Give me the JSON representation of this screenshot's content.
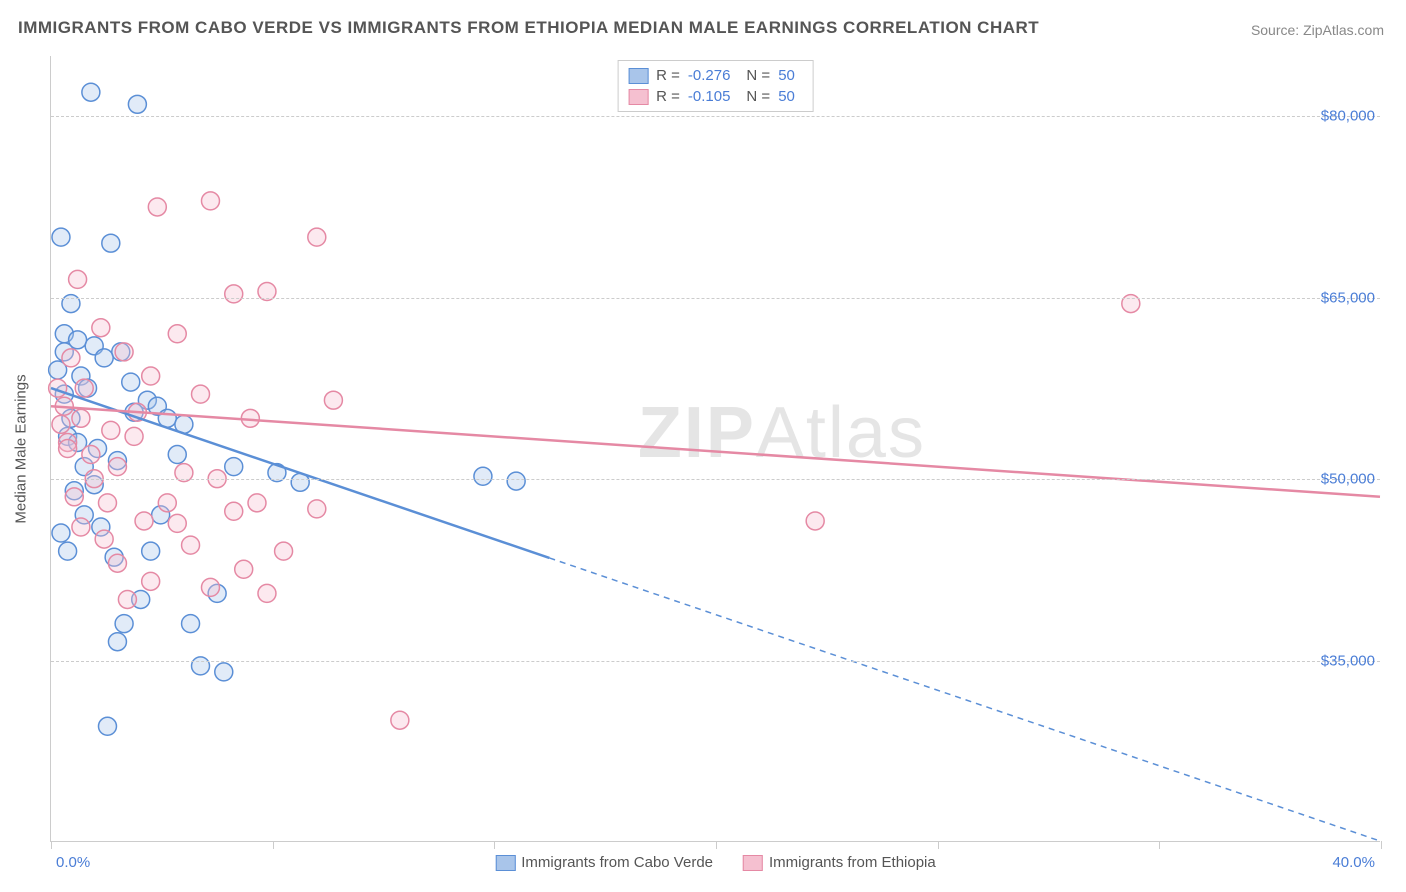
{
  "title": "IMMIGRANTS FROM CABO VERDE VS IMMIGRANTS FROM ETHIOPIA MEDIAN MALE EARNINGS CORRELATION CHART",
  "source": "Source: ZipAtlas.com",
  "watermark_bold": "ZIP",
  "watermark_rest": "Atlas",
  "yaxis_title": "Median Male Earnings",
  "chart": {
    "type": "scatter",
    "background_color": "#ffffff",
    "grid_color": "#cccccc",
    "grid_dash": "4,4",
    "axis_color": "#cccccc",
    "xlim": [
      0,
      40
    ],
    "ylim": [
      20000,
      85000
    ],
    "ytick_values": [
      35000,
      50000,
      65000,
      80000
    ],
    "ytick_labels": [
      "$35,000",
      "$50,000",
      "$65,000",
      "$80,000"
    ],
    "xtick_values": [
      0,
      6.67,
      13.33,
      20,
      26.67,
      33.33,
      40
    ],
    "xaxis_label_left": "0.0%",
    "xaxis_label_right": "40.0%",
    "tick_label_color": "#4a7dd6",
    "tick_label_fontsize": 15,
    "axis_title_color": "#555555",
    "axis_title_fontsize": 15,
    "marker_radius": 9,
    "marker_stroke_width": 1.5,
    "marker_fill_opacity": 0.35,
    "trend_line_width": 2.5,
    "trend_dash": "6,5",
    "series": [
      {
        "name": "Immigrants from Cabo Verde",
        "color": "#5b8fd6",
        "fill": "#a9c5ea",
        "R": "-0.276",
        "N": "50",
        "trend": {
          "x1": 0,
          "y1": 57500,
          "x2": 40,
          "y2": 20000,
          "solid_until_x": 15
        },
        "points": [
          [
            1.2,
            82000
          ],
          [
            2.6,
            81000
          ],
          [
            0.3,
            70000
          ],
          [
            1.8,
            69500
          ],
          [
            0.6,
            64500
          ],
          [
            0.4,
            62000
          ],
          [
            0.8,
            61500
          ],
          [
            1.3,
            61000
          ],
          [
            2.1,
            60500
          ],
          [
            1.6,
            60000
          ],
          [
            0.9,
            58500
          ],
          [
            2.4,
            58000
          ],
          [
            1.1,
            57500
          ],
          [
            2.9,
            56500
          ],
          [
            3.2,
            56000
          ],
          [
            3.5,
            55000
          ],
          [
            4.0,
            54500
          ],
          [
            0.5,
            53500
          ],
          [
            1.4,
            52500
          ],
          [
            2.0,
            51500
          ],
          [
            5.5,
            51000
          ],
          [
            6.8,
            50500
          ],
          [
            13.0,
            50200
          ],
          [
            14.0,
            49800
          ],
          [
            7.5,
            49700
          ],
          [
            0.7,
            49000
          ],
          [
            1.0,
            47000
          ],
          [
            3.3,
            47000
          ],
          [
            3.0,
            44000
          ],
          [
            1.9,
            43500
          ],
          [
            2.7,
            40000
          ],
          [
            5.0,
            40500
          ],
          [
            2.2,
            38000
          ],
          [
            4.2,
            38000
          ],
          [
            2.0,
            36500
          ],
          [
            4.5,
            34500
          ],
          [
            5.2,
            34000
          ],
          [
            1.7,
            29500
          ],
          [
            0.4,
            57000
          ],
          [
            0.6,
            55000
          ],
          [
            0.8,
            53000
          ],
          [
            1.0,
            51000
          ],
          [
            1.3,
            49500
          ],
          [
            1.5,
            46000
          ],
          [
            0.3,
            45500
          ],
          [
            0.5,
            44000
          ],
          [
            2.5,
            55500
          ],
          [
            3.8,
            52000
          ],
          [
            0.2,
            59000
          ],
          [
            0.4,
            60500
          ]
        ]
      },
      {
        "name": "Immigrants from Ethiopia",
        "color": "#e589a4",
        "fill": "#f5c0d0",
        "R": "-0.105",
        "N": "50",
        "trend": {
          "x1": 0,
          "y1": 56000,
          "x2": 40,
          "y2": 48500,
          "solid_until_x": 40
        },
        "points": [
          [
            4.8,
            73000
          ],
          [
            3.2,
            72500
          ],
          [
            8.0,
            70000
          ],
          [
            0.8,
            66500
          ],
          [
            6.5,
            65500
          ],
          [
            5.5,
            65300
          ],
          [
            32.5,
            64500
          ],
          [
            1.5,
            62500
          ],
          [
            3.8,
            62000
          ],
          [
            2.2,
            60500
          ],
          [
            0.6,
            60000
          ],
          [
            3.0,
            58500
          ],
          [
            1.0,
            57500
          ],
          [
            4.5,
            57000
          ],
          [
            8.5,
            56500
          ],
          [
            0.4,
            56000
          ],
          [
            0.9,
            55000
          ],
          [
            6.0,
            55000
          ],
          [
            1.8,
            54000
          ],
          [
            2.5,
            53500
          ],
          [
            0.5,
            53000
          ],
          [
            1.2,
            52000
          ],
          [
            2.0,
            51000
          ],
          [
            4.0,
            50500
          ],
          [
            5.0,
            50000
          ],
          [
            23.0,
            46500
          ],
          [
            0.7,
            48500
          ],
          [
            3.5,
            48000
          ],
          [
            6.2,
            48000
          ],
          [
            8.0,
            47500
          ],
          [
            5.5,
            47300
          ],
          [
            2.8,
            46500
          ],
          [
            3.8,
            46300
          ],
          [
            1.6,
            45000
          ],
          [
            4.2,
            44500
          ],
          [
            7.0,
            44000
          ],
          [
            2.0,
            43000
          ],
          [
            5.8,
            42500
          ],
          [
            3.0,
            41500
          ],
          [
            4.8,
            41000
          ],
          [
            6.5,
            40500
          ],
          [
            2.3,
            40000
          ],
          [
            10.5,
            30000
          ],
          [
            0.3,
            54500
          ],
          [
            0.5,
            52500
          ],
          [
            1.3,
            50000
          ],
          [
            1.7,
            48000
          ],
          [
            0.9,
            46000
          ],
          [
            2.6,
            55500
          ],
          [
            0.2,
            57500
          ]
        ]
      }
    ]
  },
  "legend_top": [
    {
      "swatch": 0,
      "R_label": "R =",
      "N_label": "N ="
    },
    {
      "swatch": 1,
      "R_label": "R =",
      "N_label": "N ="
    }
  ]
}
